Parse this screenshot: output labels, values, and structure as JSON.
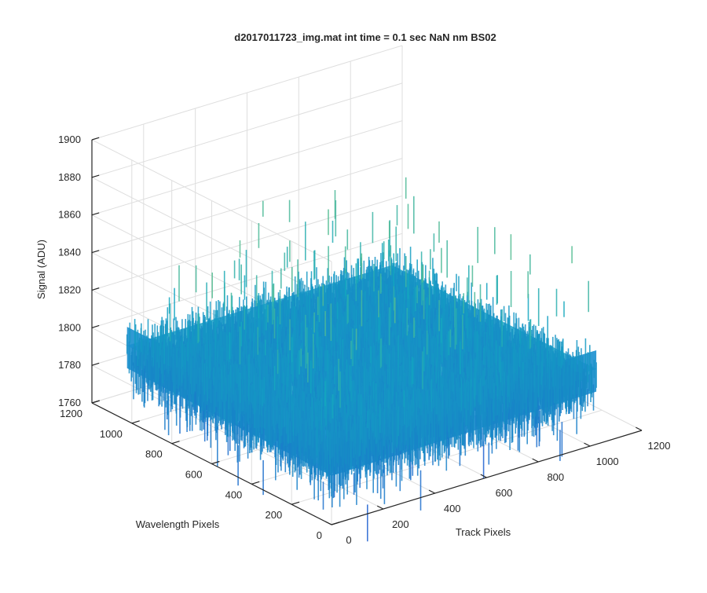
{
  "chart_data": {
    "type": "surface",
    "title": "d2017011723_img.mat int time = 0.1 sec  NaN nm BS02",
    "xlabel": "Track Pixels",
    "ylabel": "Wavelength Pixels",
    "zlabel": "Signal (ADU)",
    "xlim": [
      0,
      1200
    ],
    "ylim": [
      0,
      1200
    ],
    "zlim": [
      1760,
      1900
    ],
    "x_ticks": [
      "0",
      "200",
      "400",
      "600",
      "800",
      "1000",
      "1200"
    ],
    "y_ticks": [
      "0",
      "200",
      "400",
      "600",
      "800",
      "1000",
      "1200"
    ],
    "z_ticks": [
      "1760",
      "1780",
      "1800",
      "1820",
      "1840",
      "1860",
      "1880",
      "1900"
    ],
    "grid": true,
    "colormap": "parula",
    "surface_extent": {
      "x": [
        0,
        1024
      ],
      "y": [
        0,
        1024
      ]
    },
    "signal_mean": 1800,
    "signal_range": [
      1760,
      1890
    ],
    "colors": {
      "low": "#1f5fd0",
      "mid": "#12a7c0",
      "high": "#8fcf6a"
    }
  }
}
